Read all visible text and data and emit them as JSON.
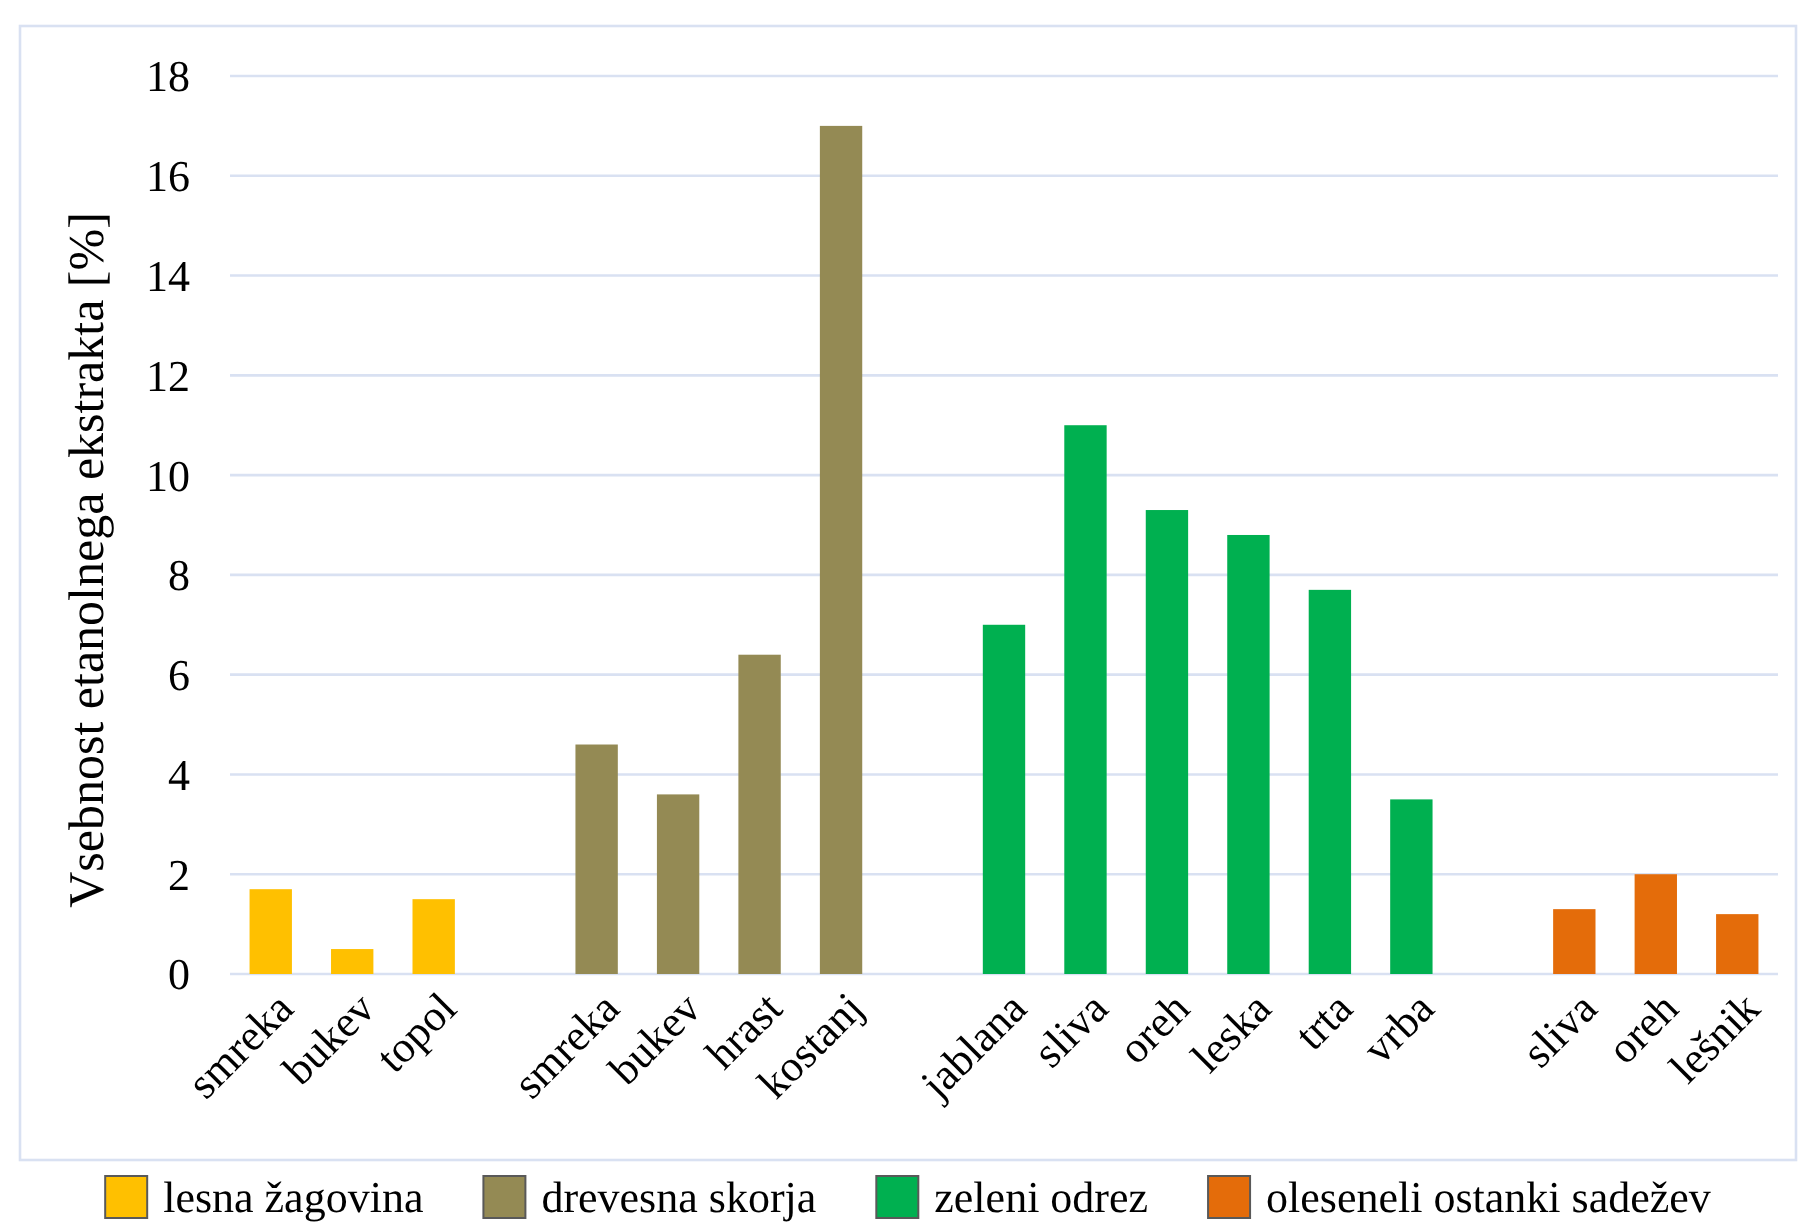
{
  "chart_data": {
    "type": "bar",
    "ylabel": "Vsebnost etanolnega ekstrakta [%]",
    "categories": [
      "smreka",
      "bukev",
      "topol",
      null,
      "smreka",
      "bukev",
      "hrast",
      "kostanj",
      null,
      "jablana",
      "sliva",
      "oreh",
      "leska",
      "trta",
      "vrba",
      null,
      "sliva",
      "oreh",
      "lešnik"
    ],
    "series": [
      {
        "name": "lesna žagovina",
        "color": "#ffc000",
        "values": [
          1.7,
          0.5,
          1.5,
          null,
          null,
          null,
          null,
          null,
          null,
          null,
          null,
          null,
          null,
          null,
          null,
          null,
          null,
          null,
          null
        ]
      },
      {
        "name": "drevesna skorja",
        "color": "#948a54",
        "values": [
          null,
          null,
          null,
          null,
          4.6,
          3.6,
          6.4,
          17.0,
          null,
          null,
          null,
          null,
          null,
          null,
          null,
          null,
          null,
          null,
          null
        ]
      },
      {
        "name": "zeleni odrez",
        "color": "#00b050",
        "values": [
          null,
          null,
          null,
          null,
          null,
          null,
          null,
          null,
          null,
          7.0,
          11.0,
          9.3,
          8.8,
          7.7,
          3.5,
          null,
          null,
          null,
          null
        ]
      },
      {
        "name": "oleseneli ostanki sadežev",
        "color": "#e46c0a",
        "values": [
          null,
          null,
          null,
          null,
          null,
          null,
          null,
          null,
          null,
          null,
          null,
          null,
          null,
          null,
          null,
          null,
          1.3,
          2.0,
          1.2
        ]
      }
    ],
    "ylim": [
      0,
      18
    ],
    "yticks": [
      0,
      2,
      4,
      6,
      8,
      10,
      12,
      14,
      16,
      18
    ],
    "grid": "y",
    "legend": "bottom"
  }
}
